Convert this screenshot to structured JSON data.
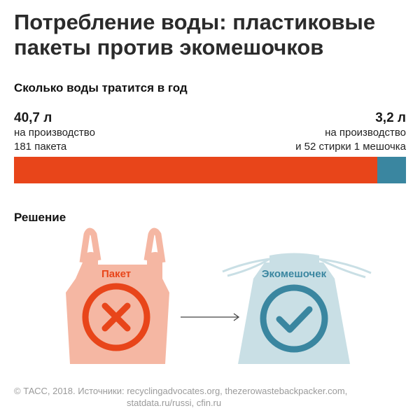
{
  "title": "Потребление воды: пластиковые пакеты против экомешочков",
  "subtitle": "Сколько воды тратится в год",
  "left": {
    "value": "40,7 л",
    "line1": "на производство",
    "line2": "181 пакета"
  },
  "right": {
    "value": "3,2 л",
    "line1": "на производство",
    "line2": "и 52 стирки 1 мешочка"
  },
  "chart_data": {
    "type": "bar",
    "title": "Сколько воды тратится в год",
    "categories": [
      "на производство 181 пакета",
      "на производство и 52 стирки 1 мешочка"
    ],
    "values": [
      40.7,
      3.2
    ],
    "unit": "л",
    "colors": [
      "#e8451a",
      "#3a86a0"
    ],
    "stacked": true
  },
  "solution": {
    "title": "Решение",
    "bag_label": "Пакет",
    "eco_label": "Экомешочек"
  },
  "colors": {
    "bag_fill": "#f5b7a3",
    "bag_accent": "#e8451a",
    "eco_fill": "#c9dfe5",
    "eco_accent": "#3a86a0"
  },
  "icons": {
    "bag": "cross-icon",
    "eco": "checkmark-icon",
    "arrow": "arrow-right-icon"
  },
  "footer": {
    "line1": "© ТАСС, 2018. Источники: recyclingadvocates.org, thezerowastebackpacker.com,",
    "line2": "statdata.ru/russi, cfin.ru"
  }
}
